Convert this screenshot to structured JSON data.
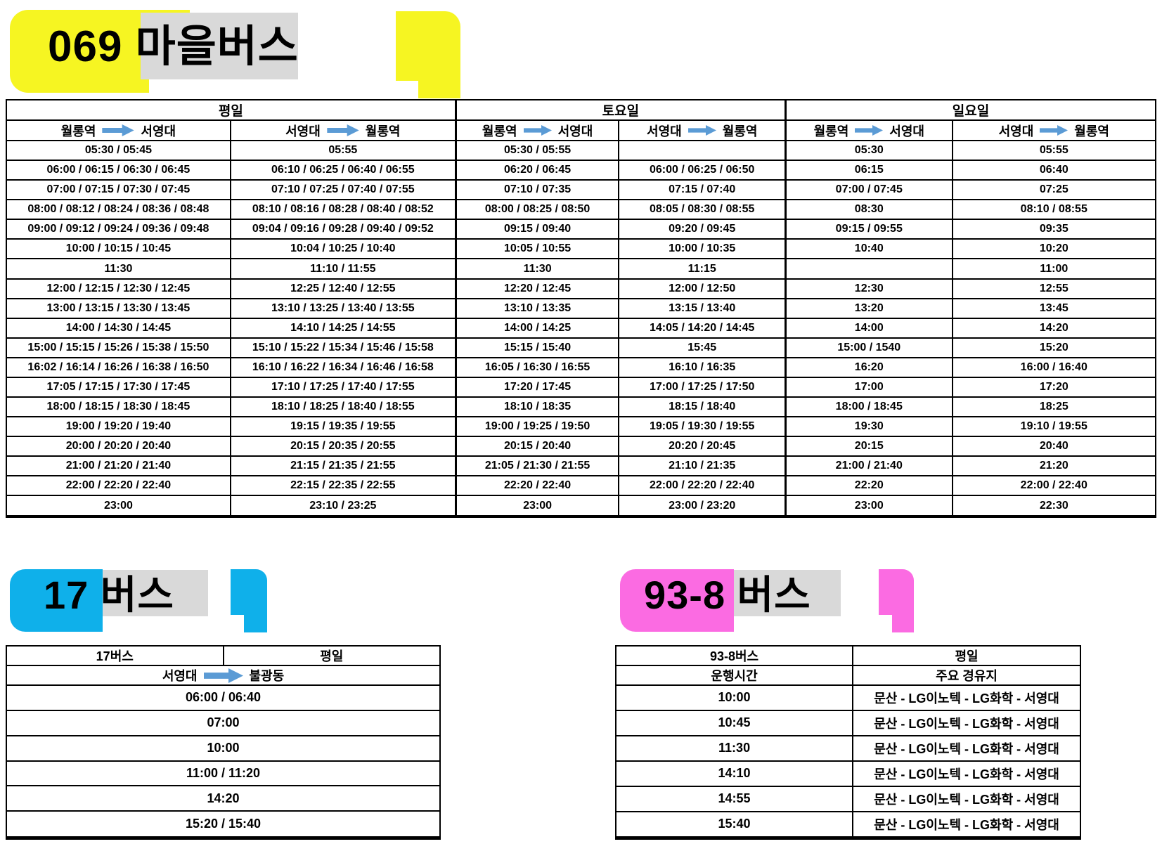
{
  "colors": {
    "yellow": "#F6F522",
    "cyan": "#0FB0EA",
    "pink": "#FB6BE2",
    "gray": "#D9D9D9",
    "arrow": "#5B9BD5",
    "border": "#000000",
    "page_bg": "#FFFFFF"
  },
  "titles": {
    "bus069": "069 마을버스",
    "bus17": "17 버스",
    "bus938": "93-8 버스"
  },
  "timetable_069": {
    "day_groups": [
      {
        "label": "평일"
      },
      {
        "label": "토요일"
      },
      {
        "label": "일요일"
      }
    ],
    "directions": [
      {
        "from": "월롱역",
        "to": "서영대"
      },
      {
        "from": "서영대",
        "to": "월롱역"
      },
      {
        "from": "월롱역",
        "to": "서영대"
      },
      {
        "from": "서영대",
        "to": "월롱역"
      },
      {
        "from": "월롱역",
        "to": "서영대"
      },
      {
        "from": "서영대",
        "to": "월롱역"
      }
    ],
    "rows": [
      [
        "05:30 / 05:45",
        "05:55",
        "05:30 / 05:55",
        "",
        "05:30",
        "05:55"
      ],
      [
        "06:00 / 06:15 / 06:30 / 06:45",
        "06:10 / 06:25 / 06:40 / 06:55",
        "06:20 / 06:45",
        "06:00 / 06:25 / 06:50",
        "06:15",
        "06:40"
      ],
      [
        "07:00 / 07:15 / 07:30 / 07:45",
        "07:10 / 07:25 / 07:40 / 07:55",
        "07:10 / 07:35",
        "07:15 / 07:40",
        "07:00 / 07:45",
        "07:25"
      ],
      [
        "08:00 / 08:12 / 08:24 / 08:36 / 08:48",
        "08:10 / 08:16 / 08:28 / 08:40 / 08:52",
        "08:00 / 08:25 / 08:50",
        "08:05 / 08:30 / 08:55",
        "08:30",
        "08:10 / 08:55"
      ],
      [
        "09:00 / 09:12 / 09:24 / 09:36 / 09:48",
        "09:04 / 09:16 / 09:28 / 09:40 / 09:52",
        "09:15 / 09:40",
        "09:20 / 09:45",
        "09:15 / 09:55",
        "09:35"
      ],
      [
        "10:00 / 10:15 / 10:45",
        "10:04 / 10:25 / 10:40",
        "10:05 / 10:55",
        "10:00 / 10:35",
        "10:40",
        "10:20"
      ],
      [
        "11:30",
        "11:10 / 11:55",
        "11:30",
        "11:15",
        "",
        "11:00"
      ],
      [
        "12:00 / 12:15 / 12:30 / 12:45",
        "12:25 / 12:40 / 12:55",
        "12:20 / 12:45",
        "12:00 / 12:50",
        "12:30",
        "12:55"
      ],
      [
        "13:00 / 13:15 / 13:30 / 13:45",
        "13:10 / 13:25 / 13:40 / 13:55",
        "13:10 / 13:35",
        "13:15 / 13:40",
        "13:20",
        "13:45"
      ],
      [
        "14:00 / 14:30 / 14:45",
        "14:10 / 14:25 / 14:55",
        "14:00 / 14:25",
        "14:05 / 14:20 / 14:45",
        "14:00",
        "14:20"
      ],
      [
        "15:00 / 15:15 / 15:26 / 15:38 / 15:50",
        "15:10 / 15:22 / 15:34 / 15:46 / 15:58",
        "15:15 / 15:40",
        "15:45",
        "15:00 / 1540",
        "15:20"
      ],
      [
        "16:02 / 16:14 / 16:26 / 16:38 / 16:50",
        "16:10 / 16:22 / 16:34 / 16:46 / 16:58",
        "16:05 / 16:30 / 16:55",
        "16:10 / 16:35",
        "16:20",
        "16:00 / 16:40"
      ],
      [
        "17:05 / 17:15 / 17:30 / 17:45",
        "17:10 / 17:25 / 17:40 / 17:55",
        "17:20 / 17:45",
        "17:00 / 17:25 / 17:50",
        "17:00",
        "17:20"
      ],
      [
        "18:00 / 18:15 / 18:30 / 18:45",
        "18:10 / 18:25 / 18:40 / 18:55",
        "18:10 / 18:35",
        "18:15 / 18:40",
        "18:00 / 18:45",
        "18:25"
      ],
      [
        "19:00 / 19:20 / 19:40",
        "19:15 / 19:35 / 19:55",
        "19:00 / 19:25 / 19:50",
        "19:05 / 19:30 / 19:55",
        "19:30",
        "19:10 / 19:55"
      ],
      [
        "20:00 / 20:20 / 20:40",
        "20:15 / 20:35 / 20:55",
        "20:15 / 20:40",
        "20:20 / 20:45",
        "20:15",
        "20:40"
      ],
      [
        "21:00 / 21:20 / 21:40",
        "21:15 / 21:35 / 21:55",
        "21:05 / 21:30 / 21:55",
        "21:10 / 21:35",
        "21:00 / 21:40",
        "21:20"
      ],
      [
        "22:00 / 22:20 / 22:40",
        "22:15 / 22:35 / 22:55",
        "22:20 / 22:40",
        "22:00 / 22:20 / 22:40",
        "22:20",
        "22:00 / 22:40"
      ],
      [
        "23:00",
        "23:10 / 23:25",
        "23:00",
        "23:00 / 23:20",
        "23:00",
        "22:30"
      ]
    ]
  },
  "timetable_17": {
    "header": [
      "17버스",
      "평일"
    ],
    "direction": {
      "from": "서영대",
      "to": "불광동"
    },
    "rows": [
      "06:00 / 06:40",
      "07:00",
      "10:00",
      "11:00 / 11:20",
      "14:20",
      "15:20 / 15:40"
    ]
  },
  "timetable_938": {
    "header": [
      "93-8버스",
      "평일"
    ],
    "subheader": [
      "운행시간",
      "주요 경유지"
    ],
    "rows": [
      {
        "time": "10:00",
        "route": "문산 - LG이노텍 - LG화학 - 서영대"
      },
      {
        "time": "10:45",
        "route": "문산 - LG이노텍 - LG화학 - 서영대"
      },
      {
        "time": "11:30",
        "route": "문산 - LG이노텍 - LG화학 - 서영대"
      },
      {
        "time": "14:10",
        "route": "문산 - LG이노텍 - LG화학 - 서영대"
      },
      {
        "time": "14:55",
        "route": "문산 - LG이노텍 - LG화학 - 서영대"
      },
      {
        "time": "15:40",
        "route": "문산 - LG이노텍 - LG화학 - 서영대"
      }
    ]
  }
}
